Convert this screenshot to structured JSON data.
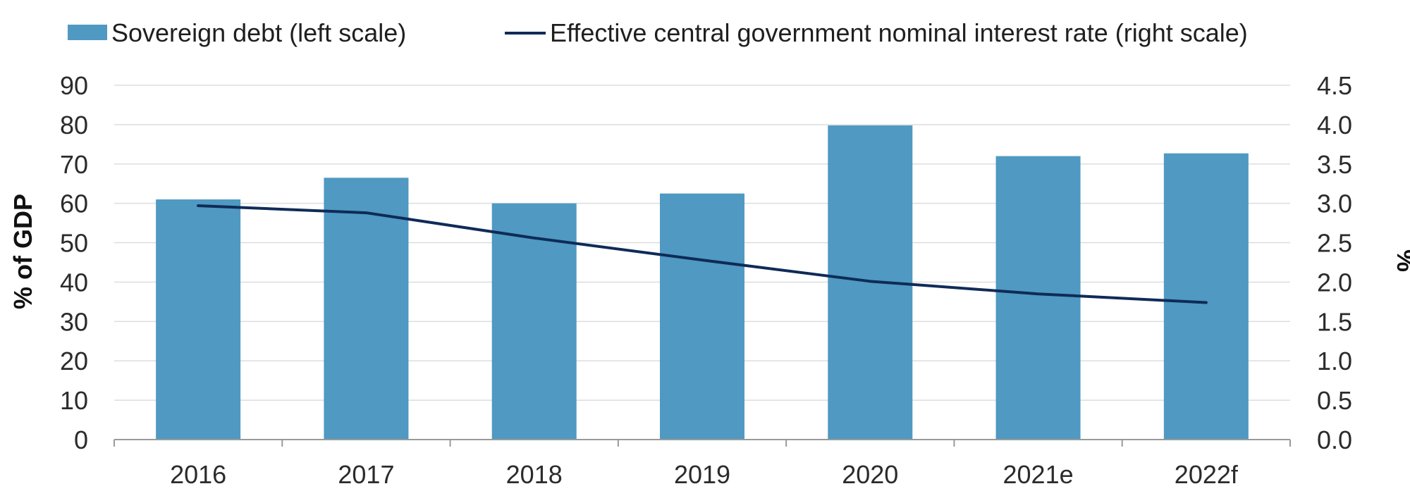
{
  "chart_data": {
    "type": "bar",
    "categories": [
      "2016",
      "2017",
      "2018",
      "2019",
      "2020",
      "2021e",
      "2022f"
    ],
    "series": [
      {
        "name": "Sovereign debt (left scale)",
        "kind": "bar",
        "axis": "left",
        "color": "#4f99c2",
        "values": [
          61.0,
          66.5,
          60.0,
          62.5,
          79.8,
          72.0,
          72.7
        ]
      },
      {
        "name": "Effective central government nominal interest rate (right scale)",
        "kind": "line",
        "axis": "right",
        "color": "#0f2b57",
        "values": [
          2.97,
          2.88,
          2.56,
          2.28,
          2.01,
          1.85,
          1.74
        ]
      }
    ],
    "ylabel": "% of GDP",
    "ylabel_right": "%",
    "ylim": [
      0,
      90
    ],
    "ylim_right": [
      0,
      4.5
    ],
    "yticks": [
      "0",
      "10",
      "20",
      "30",
      "40",
      "50",
      "60",
      "70",
      "80",
      "90"
    ],
    "yticks_right": [
      "0.0",
      "0.5",
      "1.0",
      "1.5",
      "2.0",
      "2.5",
      "3.0",
      "3.5",
      "4.0",
      "4.5"
    ],
    "grid": true,
    "legend_position": "top"
  }
}
